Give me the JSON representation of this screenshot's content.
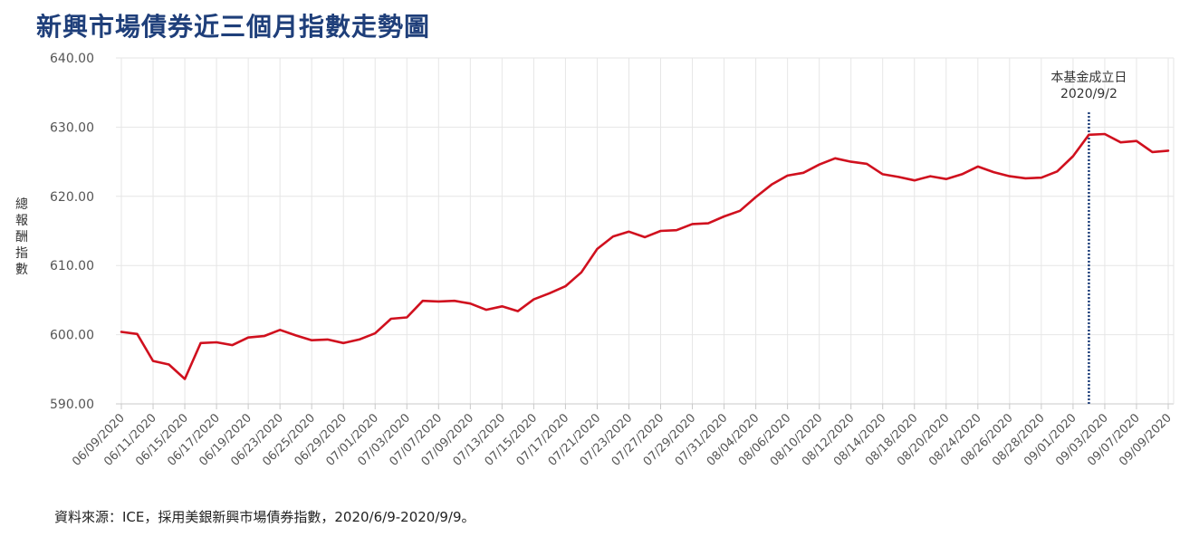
{
  "chart_data": {
    "type": "line",
    "title": "新興市場債券近三個月指數走勢圖",
    "ylabel": "總報酬指數",
    "xlabel": "",
    "ylim": [
      590,
      640
    ],
    "yticks": [
      "590.00",
      "600.00",
      "610.00",
      "620.00",
      "630.00",
      "640.00"
    ],
    "grid": true,
    "x": [
      "06/09/2020",
      "06/10/2020",
      "06/11/2020",
      "06/12/2020",
      "06/15/2020",
      "06/16/2020",
      "06/17/2020",
      "06/18/2020",
      "06/19/2020",
      "06/22/2020",
      "06/23/2020",
      "06/24/2020",
      "06/25/2020",
      "06/26/2020",
      "06/29/2020",
      "06/30/2020",
      "07/01/2020",
      "07/02/2020",
      "07/03/2020",
      "07/06/2020",
      "07/07/2020",
      "07/08/2020",
      "07/09/2020",
      "07/10/2020",
      "07/13/2020",
      "07/14/2020",
      "07/15/2020",
      "07/16/2020",
      "07/17/2020",
      "07/20/2020",
      "07/21/2020",
      "07/22/2020",
      "07/23/2020",
      "07/24/2020",
      "07/27/2020",
      "07/28/2020",
      "07/29/2020",
      "07/30/2020",
      "07/31/2020",
      "08/03/2020",
      "08/04/2020",
      "08/05/2020",
      "08/06/2020",
      "08/07/2020",
      "08/10/2020",
      "08/11/2020",
      "08/12/2020",
      "08/13/2020",
      "08/14/2020",
      "08/17/2020",
      "08/18/2020",
      "08/19/2020",
      "08/20/2020",
      "08/21/2020",
      "08/24/2020",
      "08/25/2020",
      "08/26/2020",
      "08/27/2020",
      "08/28/2020",
      "08/31/2020",
      "09/01/2020",
      "09/02/2020",
      "09/03/2020",
      "09/04/2020",
      "09/07/2020",
      "09/08/2020",
      "09/09/2020"
    ],
    "xtick_labels": [
      "06/09/2020",
      "06/11/2020",
      "06/15/2020",
      "06/17/2020",
      "06/19/2020",
      "06/23/2020",
      "06/25/2020",
      "06/29/2020",
      "07/01/2020",
      "07/03/2020",
      "07/07/2020",
      "07/09/2020",
      "07/13/2020",
      "07/15/2020",
      "07/17/2020",
      "07/21/2020",
      "07/23/2020",
      "07/27/2020",
      "07/29/2020",
      "07/31/2020",
      "08/04/2020",
      "08/06/2020",
      "08/10/2020",
      "08/12/2020",
      "08/14/2020",
      "08/18/2020",
      "08/20/2020",
      "08/24/2020",
      "08/26/2020",
      "08/28/2020",
      "09/01/2020",
      "09/03/2020",
      "09/07/2020",
      "09/09/2020"
    ],
    "series": [
      {
        "name": "",
        "color": "#d0101e",
        "values": [
          600.4,
          600.1,
          596.2,
          595.7,
          593.6,
          598.8,
          598.9,
          598.5,
          599.6,
          599.8,
          600.7,
          599.9,
          599.2,
          599.3,
          598.8,
          599.3,
          600.2,
          602.3,
          602.5,
          604.9,
          604.8,
          604.9,
          604.5,
          603.6,
          604.1,
          603.4,
          605.1,
          606.0,
          607.0,
          609.0,
          612.4,
          614.2,
          614.9,
          614.1,
          615.0,
          615.1,
          616.0,
          616.1,
          617.1,
          617.9,
          619.9,
          621.7,
          623.0,
          623.4,
          624.6,
          625.5,
          625.0,
          624.7,
          623.2,
          622.8,
          622.3,
          622.9,
          622.5,
          623.2,
          624.3,
          623.5,
          622.9,
          622.6,
          622.7,
          623.6,
          625.8,
          628.9,
          629.0,
          627.8,
          628.0,
          626.4,
          626.6
        ]
      }
    ],
    "annotation": {
      "x": "09/02/2020",
      "line_color": "#1f3f7a",
      "line_style": "dotted",
      "label_line1": "本基金成立日",
      "label_line2": "2020/9/2"
    }
  },
  "source_note": "資料來源：ICE，採用美銀新興市場債券指數，2020/6/9-2020/9/9。"
}
